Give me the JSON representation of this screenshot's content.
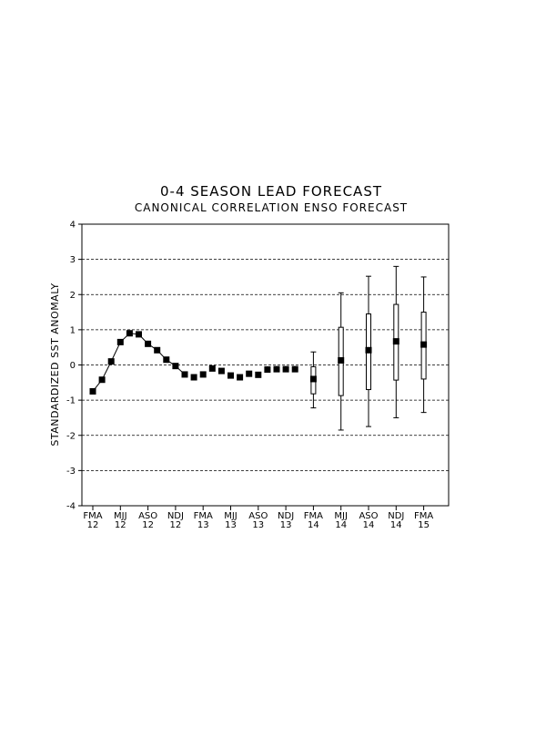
{
  "chart_data": {
    "type": "line",
    "title": "0-4 SEASON LEAD FORECAST",
    "subtitle": "CANONICAL CORRELATION ENSO FORECAST",
    "ylabel": "STANDARDIZED SST ANOMALY",
    "xlabel": "",
    "ylim": [
      -4,
      4
    ],
    "yticks": [
      -4,
      -3,
      -2,
      -1,
      0,
      1,
      2,
      3,
      4
    ],
    "grid": "horizontal-dashed",
    "xticks": [
      {
        "season": "FMA",
        "year": "12",
        "x": 0
      },
      {
        "season": "MJJ",
        "year": "12",
        "x": 3
      },
      {
        "season": "ASO",
        "year": "12",
        "x": 6
      },
      {
        "season": "NDJ",
        "year": "12",
        "x": 9
      },
      {
        "season": "FMA",
        "year": "13",
        "x": 12
      },
      {
        "season": "MJJ",
        "year": "13",
        "x": 15
      },
      {
        "season": "ASO",
        "year": "13",
        "x": 18
      },
      {
        "season": "NDJ",
        "year": "13",
        "x": 21
      },
      {
        "season": "FMA",
        "year": "14",
        "x": 24
      },
      {
        "season": "MJJ",
        "year": "14",
        "x": 27
      },
      {
        "season": "ASO",
        "year": "14",
        "x": 30
      },
      {
        "season": "NDJ",
        "year": "14",
        "x": 33
      },
      {
        "season": "FMA",
        "year": "15",
        "x": 36
      }
    ],
    "observed": {
      "x": [
        0,
        1,
        2,
        3,
        4,
        5,
        6,
        7,
        8,
        9,
        10,
        11,
        12,
        13,
        14,
        15,
        16,
        17,
        18,
        19,
        20,
        21,
        22
      ],
      "y": [
        -0.75,
        -0.42,
        0.1,
        0.65,
        0.9,
        0.87,
        0.6,
        0.42,
        0.15,
        -0.03,
        -0.27,
        -0.35,
        -0.27,
        -0.1,
        -0.17,
        -0.3,
        -0.35,
        -0.25,
        -0.28,
        -0.13,
        -0.12,
        -0.12,
        -0.12
      ]
    },
    "observed_line_end_index": 10,
    "forecasts": [
      {
        "x": 24,
        "median": -0.4,
        "box_low": -0.82,
        "box_high": -0.05,
        "whisker_low": -1.22,
        "whisker_high": 0.37
      },
      {
        "x": 27,
        "median": 0.13,
        "box_low": -0.87,
        "box_high": 1.07,
        "whisker_low": -1.85,
        "whisker_high": 2.05
      },
      {
        "x": 30,
        "median": 0.42,
        "box_low": -0.7,
        "box_high": 1.45,
        "whisker_low": -1.75,
        "whisker_high": 2.52
      },
      {
        "x": 33,
        "median": 0.67,
        "box_low": -0.43,
        "box_high": 1.72,
        "whisker_low": -1.5,
        "whisker_high": 2.8
      },
      {
        "x": 36,
        "median": 0.58,
        "box_low": -0.4,
        "box_high": 1.5,
        "whisker_low": -1.35,
        "whisker_high": 2.5
      }
    ]
  }
}
